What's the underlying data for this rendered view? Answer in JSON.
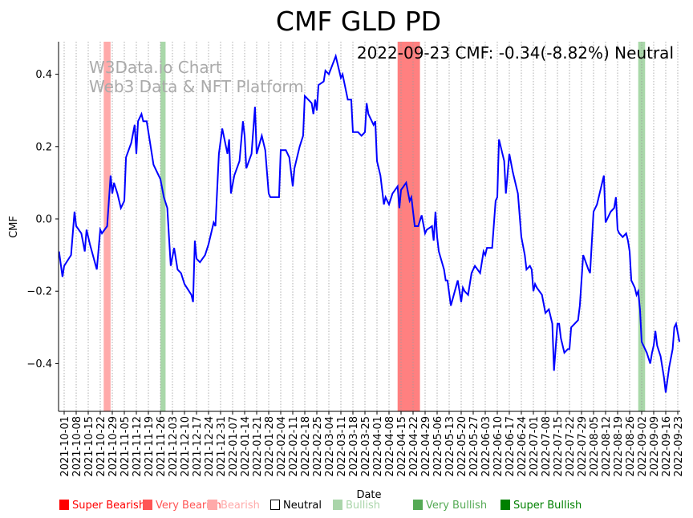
{
  "chart_data": {
    "type": "line",
    "title": "CMF GLD PD",
    "annotation": "2022-09-23 CMF: -0.34(-8.82%) Neutral",
    "watermark": [
      "W3Data.io Chart",
      "Web3 Data & NFT Platform"
    ],
    "xlabel": "Date",
    "ylabel": "CMF",
    "ylim": [
      -0.53,
      0.49
    ],
    "yticks": [
      0.4,
      0.2,
      0.0,
      -0.2,
      -0.4
    ],
    "ytick_labels": [
      "0.4",
      "0.2",
      "0.0",
      "−0.2",
      "−0.4"
    ],
    "x_start_date": "2021-10-01",
    "xlim_days": [
      -3,
      359
    ],
    "xtick_labels": [
      "2021-10-01",
      "2021-10-08",
      "2021-10-15",
      "2021-10-22",
      "2021-10-29",
      "2021-11-05",
      "2021-11-12",
      "2021-11-19",
      "2021-11-26",
      "2021-12-03",
      "2021-12-10",
      "2021-12-17",
      "2021-12-24",
      "2021-12-31",
      "2022-01-07",
      "2022-01-14",
      "2022-01-21",
      "2022-01-28",
      "2022-02-04",
      "2022-02-11",
      "2022-02-18",
      "2022-02-25",
      "2022-03-04",
      "2022-03-11",
      "2022-03-18",
      "2022-03-25",
      "2022-04-01",
      "2022-04-08",
      "2022-04-15",
      "2022-04-22",
      "2022-04-29",
      "2022-05-06",
      "2022-05-13",
      "2022-05-20",
      "2022-05-27",
      "2022-06-03",
      "2022-06-10",
      "2022-06-17",
      "2022-06-24",
      "2022-07-01",
      "2022-07-08",
      "2022-07-15",
      "2022-07-22",
      "2022-07-29",
      "2022-08-05",
      "2022-08-12",
      "2022-08-19",
      "2022-08-26",
      "2022-09-02",
      "2022-09-09",
      "2022-09-16",
      "2022-09-23"
    ],
    "series": [
      {
        "name": "CMF",
        "color": "#0000ff",
        "points": [
          [
            -3,
            -0.09
          ],
          [
            -1,
            -0.16
          ],
          [
            0,
            -0.13
          ],
          [
            4,
            -0.1
          ],
          [
            6,
            0.02
          ],
          [
            7,
            -0.02
          ],
          [
            10,
            -0.04
          ],
          [
            12,
            -0.09
          ],
          [
            13,
            -0.03
          ],
          [
            15,
            -0.07
          ],
          [
            19,
            -0.14
          ],
          [
            21,
            -0.03
          ],
          [
            22,
            -0.04
          ],
          [
            25,
            -0.02
          ],
          [
            27,
            0.12
          ],
          [
            28,
            0.07
          ],
          [
            29,
            0.1
          ],
          [
            31,
            0.07
          ],
          [
            33,
            0.03
          ],
          [
            35,
            0.05
          ],
          [
            36,
            0.17
          ],
          [
            39,
            0.21
          ],
          [
            41,
            0.26
          ],
          [
            42,
            0.18
          ],
          [
            43,
            0.27
          ],
          [
            45,
            0.29
          ],
          [
            46,
            0.27
          ],
          [
            48,
            0.27
          ],
          [
            52,
            0.15
          ],
          [
            56,
            0.11
          ],
          [
            58,
            0.06
          ],
          [
            60,
            0.03
          ],
          [
            61,
            -0.05
          ],
          [
            62,
            -0.13
          ],
          [
            64,
            -0.08
          ],
          [
            66,
            -0.14
          ],
          [
            68,
            -0.15
          ],
          [
            70,
            -0.18
          ],
          [
            74,
            -0.21
          ],
          [
            75,
            -0.23
          ],
          [
            76,
            -0.06
          ],
          [
            77,
            -0.11
          ],
          [
            79,
            -0.12
          ],
          [
            82,
            -0.1
          ],
          [
            84,
            -0.07
          ],
          [
            87,
            -0.01
          ],
          [
            88,
            -0.02
          ],
          [
            90,
            0.18
          ],
          [
            92,
            0.25
          ],
          [
            95,
            0.18
          ],
          [
            96,
            0.22
          ],
          [
            97,
            0.07
          ],
          [
            99,
            0.12
          ],
          [
            102,
            0.16
          ],
          [
            104,
            0.27
          ],
          [
            105,
            0.23
          ],
          [
            106,
            0.14
          ],
          [
            109,
            0.18
          ],
          [
            111,
            0.31
          ],
          [
            112,
            0.18
          ],
          [
            115,
            0.23
          ],
          [
            117,
            0.19
          ],
          [
            119,
            0.07
          ],
          [
            120,
            0.06
          ],
          [
            124,
            0.06
          ],
          [
            125,
            0.06
          ],
          [
            126,
            0.19
          ],
          [
            129,
            0.19
          ],
          [
            131,
            0.17
          ],
          [
            133,
            0.09
          ],
          [
            134,
            0.14
          ],
          [
            137,
            0.2
          ],
          [
            139,
            0.23
          ],
          [
            140,
            0.34
          ],
          [
            144,
            0.32
          ],
          [
            145,
            0.29
          ],
          [
            146,
            0.33
          ],
          [
            147,
            0.3
          ],
          [
            148,
            0.37
          ],
          [
            151,
            0.38
          ],
          [
            152,
            0.41
          ],
          [
            154,
            0.4
          ],
          [
            158,
            0.45
          ],
          [
            161,
            0.39
          ],
          [
            162,
            0.4
          ],
          [
            165,
            0.33
          ],
          [
            167,
            0.33
          ],
          [
            168,
            0.24
          ],
          [
            171,
            0.24
          ],
          [
            173,
            0.23
          ],
          [
            175,
            0.24
          ],
          [
            176,
            0.32
          ],
          [
            177,
            0.29
          ],
          [
            180,
            0.26
          ],
          [
            181,
            0.27
          ],
          [
            182,
            0.16
          ],
          [
            184,
            0.12
          ],
          [
            186,
            0.04
          ],
          [
            187,
            0.06
          ],
          [
            189,
            0.04
          ],
          [
            191,
            0.07
          ],
          [
            194,
            0.09
          ],
          [
            195,
            0.03
          ],
          [
            196,
            0.08
          ],
          [
            199,
            0.1
          ],
          [
            201,
            0.05
          ],
          [
            202,
            0.06
          ],
          [
            204,
            -0.02
          ],
          [
            206,
            -0.02
          ],
          [
            208,
            0.01
          ],
          [
            210,
            -0.04
          ],
          [
            211,
            -0.03
          ],
          [
            214,
            -0.02
          ],
          [
            215,
            -0.06
          ],
          [
            216,
            0.02
          ],
          [
            217,
            -0.05
          ],
          [
            218,
            -0.09
          ],
          [
            221,
            -0.14
          ],
          [
            222,
            -0.17
          ],
          [
            223,
            -0.17
          ],
          [
            225,
            -0.24
          ],
          [
            229,
            -0.17
          ],
          [
            230,
            -0.2
          ],
          [
            231,
            -0.23
          ],
          [
            232,
            -0.19
          ],
          [
            233,
            -0.2
          ],
          [
            235,
            -0.21
          ],
          [
            237,
            -0.15
          ],
          [
            238,
            -0.14
          ],
          [
            239,
            -0.13
          ],
          [
            242,
            -0.15
          ],
          [
            244,
            -0.09
          ],
          [
            245,
            -0.1
          ],
          [
            246,
            -0.08
          ],
          [
            249,
            -0.08
          ],
          [
            251,
            0.05
          ],
          [
            252,
            0.06
          ],
          [
            253,
            0.22
          ],
          [
            256,
            0.16
          ],
          [
            257,
            0.07
          ],
          [
            259,
            0.18
          ],
          [
            261,
            0.13
          ],
          [
            264,
            0.07
          ],
          [
            266,
            -0.05
          ],
          [
            268,
            -0.1
          ],
          [
            269,
            -0.14
          ],
          [
            271,
            -0.13
          ],
          [
            272,
            -0.14
          ],
          [
            273,
            -0.2
          ],
          [
            274,
            -0.18
          ],
          [
            275,
            -0.19
          ],
          [
            278,
            -0.21
          ],
          [
            280,
            -0.26
          ],
          [
            282,
            -0.25
          ],
          [
            284,
            -0.29
          ],
          [
            285,
            -0.42
          ],
          [
            287,
            -0.29
          ],
          [
            288,
            -0.29
          ],
          [
            289,
            -0.33
          ],
          [
            291,
            -0.37
          ],
          [
            293,
            -0.36
          ],
          [
            294,
            -0.36
          ],
          [
            295,
            -0.3
          ],
          [
            297,
            -0.29
          ],
          [
            299,
            -0.28
          ],
          [
            300,
            -0.24
          ],
          [
            302,
            -0.1
          ],
          [
            305,
            -0.14
          ],
          [
            306,
            -0.15
          ],
          [
            308,
            0.02
          ],
          [
            310,
            0.04
          ],
          [
            314,
            0.12
          ],
          [
            315,
            -0.01
          ],
          [
            318,
            0.02
          ],
          [
            320,
            0.03
          ],
          [
            321,
            0.06
          ],
          [
            322,
            -0.03
          ],
          [
            323,
            -0.04
          ],
          [
            325,
            -0.05
          ],
          [
            327,
            -0.04
          ],
          [
            328,
            -0.06
          ],
          [
            329,
            -0.09
          ],
          [
            330,
            -0.17
          ],
          [
            332,
            -0.19
          ],
          [
            333,
            -0.21
          ],
          [
            334,
            -0.2
          ],
          [
            335,
            -0.25
          ],
          [
            336,
            -0.34
          ],
          [
            339,
            -0.37
          ],
          [
            341,
            -0.4
          ],
          [
            342,
            -0.37
          ],
          [
            343,
            -0.35
          ],
          [
            344,
            -0.31
          ],
          [
            345,
            -0.35
          ],
          [
            347,
            -0.38
          ],
          [
            349,
            -0.44
          ],
          [
            350,
            -0.48
          ],
          [
            352,
            -0.41
          ],
          [
            354,
            -0.36
          ],
          [
            355,
            -0.3
          ],
          [
            356,
            -0.29
          ],
          [
            358,
            -0.34
          ]
        ]
      }
    ],
    "bands": [
      {
        "category": "Bearish",
        "start_day": 23,
        "end_day": 27,
        "color": "#ffaaaa"
      },
      {
        "category": "Bullish",
        "start_day": 56,
        "end_day": 59,
        "color": "#a9d8a9"
      },
      {
        "category": "Very Bearish",
        "start_day": 194,
        "end_day": 207,
        "color": "#ff8080"
      },
      {
        "category": "Bullish",
        "start_day": 334,
        "end_day": 338,
        "color": "#a9d8a9"
      }
    ],
    "legend": [
      {
        "label": "Super Bearish",
        "color": "#ff0000"
      },
      {
        "label": "Very Bearish",
        "color": "#ff5555"
      },
      {
        "label": "Bearish",
        "color": "#ffaaaa"
      },
      {
        "label": "Neutral",
        "color": "#000000",
        "hollow": true
      },
      {
        "label": "Bullish",
        "color": "#aad5aa"
      },
      {
        "label": "Very Bullish",
        "color": "#55aa55"
      },
      {
        "label": "Super Bullish",
        "color": "#008000"
      }
    ],
    "legend_placement": "bottom",
    "grid": "vertical dotted"
  }
}
